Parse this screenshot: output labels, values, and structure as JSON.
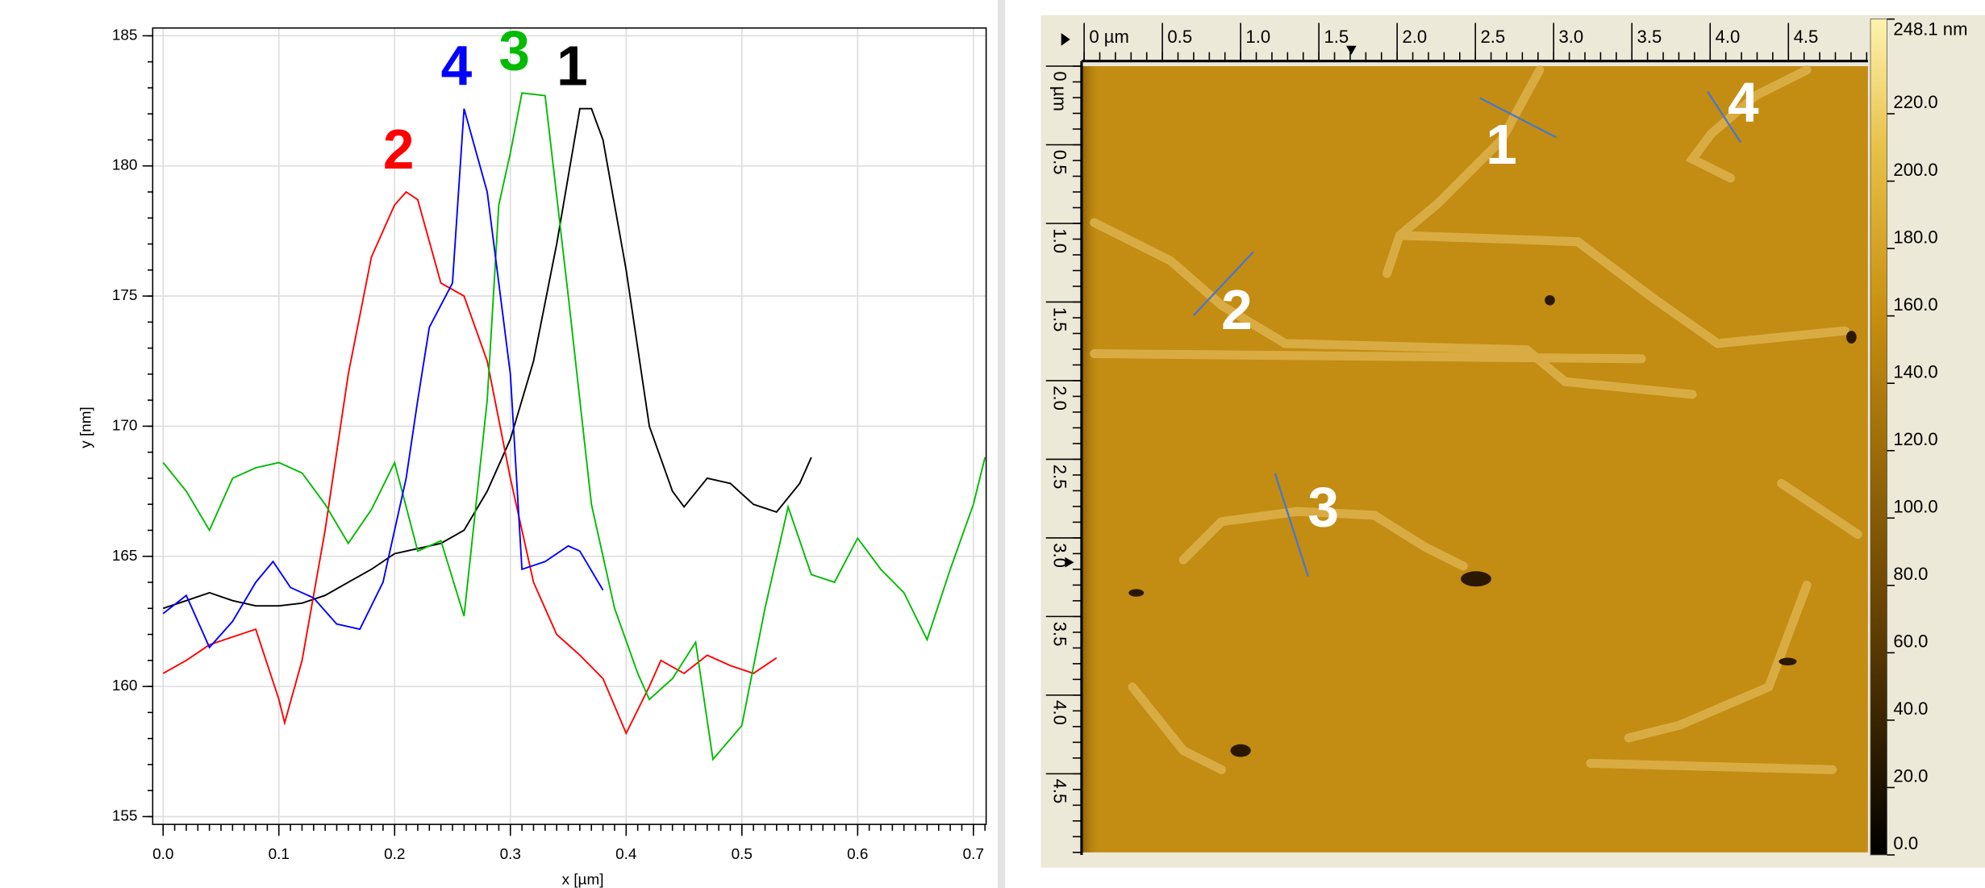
{
  "chart_data": [
    {
      "type": "line",
      "xlabel": "x [µm]",
      "ylabel": "y [nm]",
      "xlim": [
        -0.009,
        0.711
      ],
      "ylim": [
        154.7,
        185.3
      ],
      "xticks": [
        {
          "value": 0,
          "label": "0.0"
        },
        0.1,
        0.2,
        0.3,
        0.4,
        0.5,
        0.6,
        0.7
      ],
      "yticks": [
        155,
        160,
        165,
        170,
        175,
        180,
        185
      ],
      "grid": true,
      "series": [
        {
          "name": "1",
          "color": "#000000",
          "x": [
            0,
            0.02,
            0.04,
            0.06,
            0.08,
            0.1,
            0.12,
            0.14,
            0.16,
            0.18,
            0.2,
            0.22,
            0.24,
            0.26,
            0.28,
            0.3,
            0.32,
            0.34,
            0.36,
            0.37,
            0.38,
            0.4,
            0.42,
            0.44,
            0.45,
            0.47,
            0.49,
            0.51,
            0.53,
            0.55,
            0.56
          ],
          "values": [
            163.0,
            163.3,
            163.6,
            163.3,
            163.1,
            163.1,
            163.2,
            163.5,
            164.0,
            164.5,
            165.1,
            165.3,
            165.5,
            166.0,
            167.5,
            169.5,
            172.5,
            177.0,
            182.2,
            182.2,
            181.0,
            176.0,
            170.0,
            167.5,
            166.9,
            168.0,
            167.8,
            167.0,
            166.7,
            167.8,
            168.8
          ]
        },
        {
          "name": "2",
          "color": "#ff0000",
          "x": [
            0,
            0.02,
            0.04,
            0.06,
            0.08,
            0.1,
            0.105,
            0.12,
            0.14,
            0.16,
            0.18,
            0.2,
            0.21,
            0.22,
            0.24,
            0.26,
            0.28,
            0.3,
            0.32,
            0.34,
            0.36,
            0.38,
            0.4,
            0.42,
            0.43,
            0.45,
            0.47,
            0.49,
            0.51,
            0.53
          ],
          "values": [
            160.5,
            161.0,
            161.6,
            161.9,
            162.2,
            159.5,
            158.6,
            161.0,
            166.0,
            172.0,
            176.5,
            178.5,
            179.0,
            178.7,
            175.5,
            175.0,
            172.5,
            168.0,
            164.0,
            162.0,
            161.2,
            160.3,
            158.2,
            160.0,
            161.0,
            160.5,
            161.2,
            160.8,
            160.5,
            161.1
          ]
        },
        {
          "name": "3",
          "color": "#00bb00",
          "x": [
            0,
            0.02,
            0.04,
            0.06,
            0.08,
            0.1,
            0.12,
            0.14,
            0.16,
            0.18,
            0.2,
            0.22,
            0.24,
            0.26,
            0.28,
            0.29,
            0.3,
            0.31,
            0.33,
            0.35,
            0.37,
            0.39,
            0.41,
            0.42,
            0.44,
            0.46,
            0.475,
            0.5,
            0.52,
            0.54,
            0.56,
            0.58,
            0.6,
            0.62,
            0.64,
            0.66,
            0.68,
            0.7,
            0.71
          ],
          "values": [
            168.6,
            167.5,
            166.0,
            168.0,
            168.4,
            168.6,
            168.2,
            167.0,
            165.5,
            166.8,
            168.6,
            165.2,
            165.6,
            162.7,
            171.0,
            178.5,
            180.5,
            182.8,
            182.7,
            175.0,
            167.0,
            163.0,
            160.5,
            159.5,
            160.3,
            161.7,
            157.2,
            158.5,
            163.0,
            166.9,
            164.3,
            164.0,
            165.7,
            164.5,
            163.6,
            161.8,
            164.5,
            167.0,
            168.8
          ]
        },
        {
          "name": "4",
          "color": "#0000ff",
          "x": [
            0,
            0.02,
            0.04,
            0.06,
            0.08,
            0.095,
            0.11,
            0.13,
            0.15,
            0.17,
            0.19,
            0.21,
            0.22,
            0.23,
            0.25,
            0.26,
            0.28,
            0.3,
            0.31,
            0.33,
            0.35,
            0.36,
            0.38
          ],
          "values": [
            162.8,
            163.5,
            161.5,
            162.5,
            164.0,
            164.8,
            163.8,
            163.4,
            162.4,
            162.2,
            164.0,
            168.0,
            171.0,
            173.8,
            175.5,
            182.2,
            179.0,
            172.0,
            164.5,
            164.8,
            165.4,
            165.2,
            163.7
          ]
        }
      ]
    },
    {
      "type": "heatmap",
      "xlim": [
        0,
        5
      ],
      "ylim": [
        0,
        5
      ],
      "xticks": [
        {
          "value": 0,
          "label": "0 µm"
        },
        0.5,
        {
          "value": 1,
          "label": "1.0"
        },
        1.5,
        {
          "value": 2,
          "label": "2.0"
        },
        2.5,
        {
          "value": 3,
          "label": "3.0"
        },
        3.5,
        {
          "value": 4,
          "label": "4.0"
        },
        4.5
      ],
      "yticks": [
        {
          "value": 0,
          "label": "0 µm"
        },
        0.5,
        {
          "value": 1,
          "label": "1.0"
        },
        1.5,
        {
          "value": 2,
          "label": "2.0"
        },
        2.5,
        {
          "value": 3,
          "label": "3.0"
        },
        3.5,
        {
          "value": 4,
          "label": "4.0"
        },
        4.5
      ],
      "colorbar_lim": [
        0,
        248.1
      ],
      "colorbar_ticks": [
        {
          "value": 0,
          "label": "0.0"
        },
        {
          "value": 20,
          "label": "20.0"
        },
        {
          "value": 40,
          "label": "40.0"
        },
        {
          "value": 60,
          "label": "60.0"
        },
        {
          "value": 80,
          "label": "80.0"
        },
        {
          "value": 100,
          "label": "100.0"
        },
        {
          "value": 120,
          "label": "120.0"
        },
        {
          "value": 140,
          "label": "140.0"
        },
        {
          "value": 160,
          "label": "160.0"
        },
        {
          "value": 180,
          "label": "180.0"
        },
        {
          "value": 200,
          "label": "200.0"
        },
        {
          "value": 220,
          "label": "220.0"
        },
        {
          "value": 248.1,
          "label": "248.1 nm"
        }
      ],
      "annotations": [
        "1",
        "2",
        "3",
        "4"
      ]
    }
  ]
}
